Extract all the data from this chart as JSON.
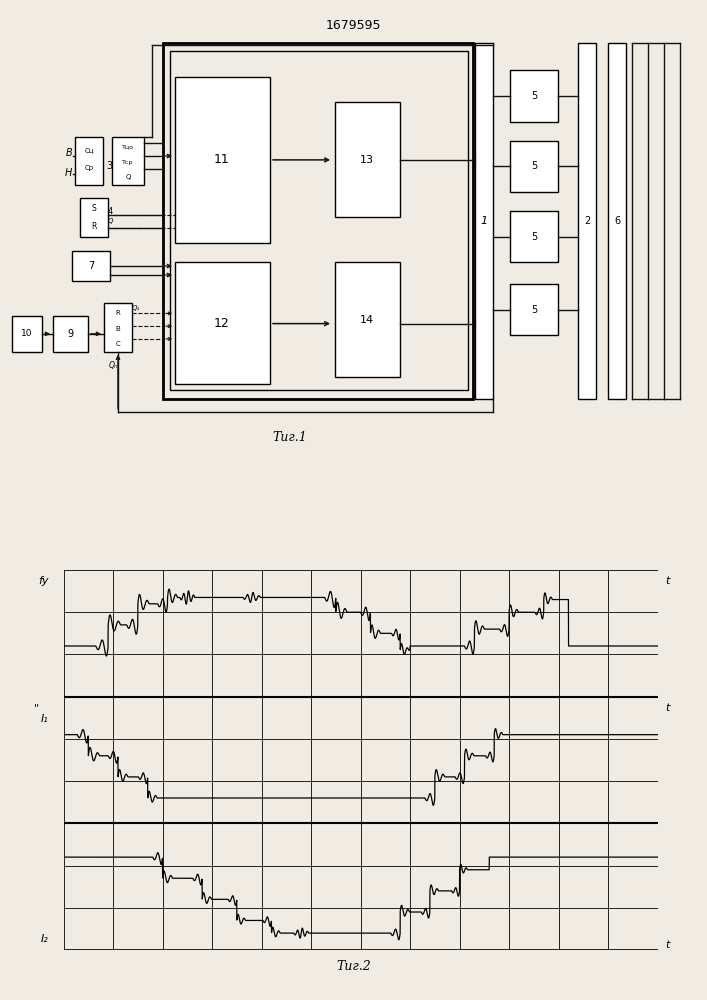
{
  "title": "1679595",
  "fig1_caption": "Τиг.1",
  "fig2_caption": "Τиг.2",
  "bg_color": "#f0ece4",
  "line_color": "#111111",
  "fig2_ylabel1": "fу",
  "fig2_ylabel2": "I₁",
  "fig2_ylabel3": "I₂",
  "fig2_xlabel": "t",
  "grid_nx": 12,
  "grid_ny": 9
}
